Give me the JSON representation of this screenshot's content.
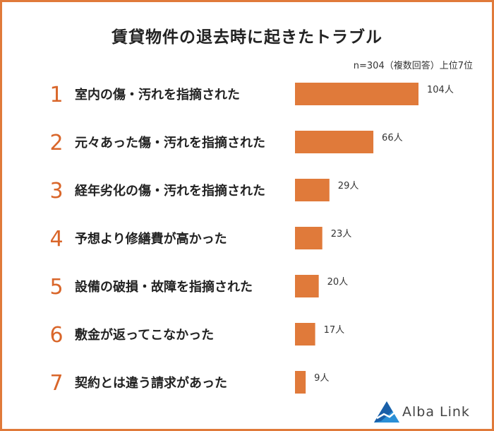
{
  "chart_data": {
    "type": "bar",
    "orientation": "horizontal",
    "title": "賃貸物件の退去時に起きたトラブル",
    "note": "n=304（複数回答）上位7位",
    "ranks": [
      "1",
      "2",
      "3",
      "4",
      "5",
      "6",
      "7"
    ],
    "categories": [
      "室内の傷・汚れを指摘された",
      "元々あった傷・汚れを指摘された",
      "経年劣化の傷・汚れを指摘された",
      "予想より修繕費が高かった",
      "設備の破損・故障を指摘された",
      "敷金が返ってこなかった",
      "契約とは違う請求があった"
    ],
    "values": [
      104,
      66,
      29,
      23,
      20,
      17,
      9
    ],
    "value_labels": [
      "104人",
      "66人",
      "29人",
      "23人",
      "20人",
      "17人",
      "9人"
    ],
    "xlim": [
      0,
      104
    ],
    "grid": false,
    "legend": "none",
    "bar_color": "#e07a3a",
    "rank_color": "#d9662a"
  },
  "brand": {
    "name": "Alba Link",
    "logo_icon": "alba-link-logo-icon",
    "colors": [
      "#2a8fd6",
      "#1a5fa8"
    ]
  }
}
